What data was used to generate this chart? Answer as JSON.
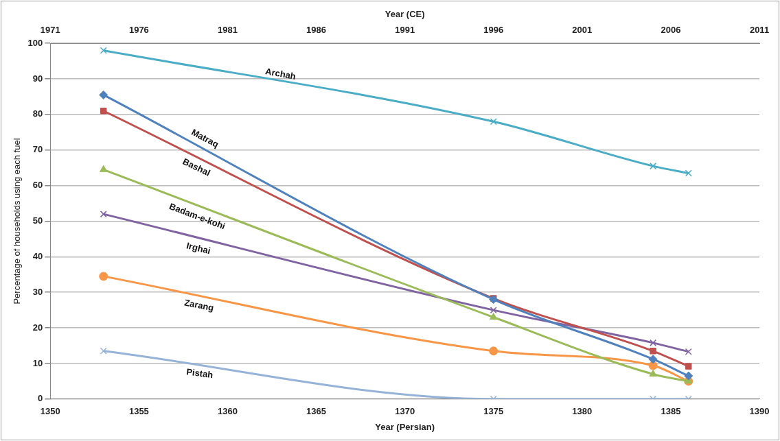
{
  "chart_data": {
    "type": "line",
    "xlabel": "Year (Persian)",
    "x2label": "Year (CE)",
    "ylabel": "Percentage of households using each fuel",
    "x": [
      1353,
      1375,
      1384,
      1386
    ],
    "xlim": [
      1350,
      1390
    ],
    "xticks": [
      1350,
      1355,
      1360,
      1365,
      1370,
      1375,
      1380,
      1385,
      1390
    ],
    "x2lim": [
      1971,
      2011
    ],
    "x2ticks": [
      1971,
      1976,
      1981,
      1986,
      1991,
      1996,
      2001,
      2006,
      2011
    ],
    "ylim": [
      0,
      100
    ],
    "yticks": [
      0,
      10,
      20,
      30,
      40,
      50,
      60,
      70,
      80,
      90,
      100
    ],
    "grid": "y",
    "legend": false,
    "series": [
      {
        "name": "Archah",
        "color": "#4bacc6",
        "marker": "cross",
        "values": [
          98,
          78,
          65.5,
          63.5
        ]
      },
      {
        "name": "Matraq",
        "color": "#4f81bd",
        "marker": "diamond",
        "values": [
          85.5,
          28,
          11.2,
          6.5
        ]
      },
      {
        "name": "Bashal",
        "color": "#c0504d",
        "marker": "square",
        "values": [
          81,
          28.3,
          13.5,
          9.2
        ]
      },
      {
        "name": "Badam-e-kohi",
        "color": "#9bbb59",
        "marker": "triangle",
        "values": [
          64.5,
          23,
          7,
          5
        ]
      },
      {
        "name": "Irghai",
        "color": "#8064a2",
        "marker": "cross",
        "values": [
          52,
          25,
          15.8,
          13.3
        ]
      },
      {
        "name": "Zarang",
        "color": "#f79646",
        "marker": "circle",
        "values": [
          34.5,
          13.5,
          9.4,
          5
        ]
      },
      {
        "name": "Pistah",
        "color": "#95b3d7",
        "marker": "cross",
        "values": [
          13.5,
          0,
          0,
          0
        ]
      }
    ]
  }
}
